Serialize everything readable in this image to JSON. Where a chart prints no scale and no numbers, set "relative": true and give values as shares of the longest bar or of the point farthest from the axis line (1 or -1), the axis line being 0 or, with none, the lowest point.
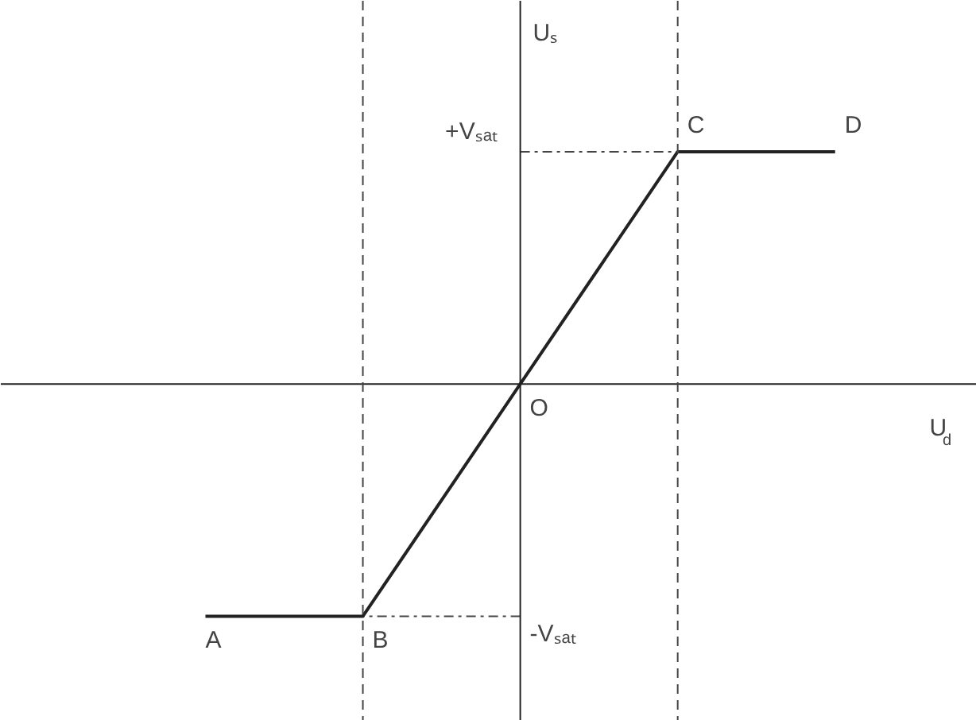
{
  "chart_data": {
    "type": "line",
    "relative": true,
    "xlabel": "U$_{d}$",
    "ylabel": "Uₛ",
    "categories": [
      null,
      null,
      null,
      null,
      null
    ],
    "values": [
      -1,
      -1,
      0,
      1,
      1
    ],
    "color": "#222222",
    "ref_lines": [
      {
        "axis": "y",
        "value": 1,
        "label": "+Vₛₐₜ",
        "line_style": "dashdot",
        "color": "#444444"
      },
      {
        "axis": "y",
        "value": -1,
        "label": "-Vₛₐₜ",
        "line_style": "dashdot",
        "color": "#444444"
      }
    ],
    "annotations": [
      "A",
      "B",
      "O",
      "C",
      "D"
    ]
  }
}
